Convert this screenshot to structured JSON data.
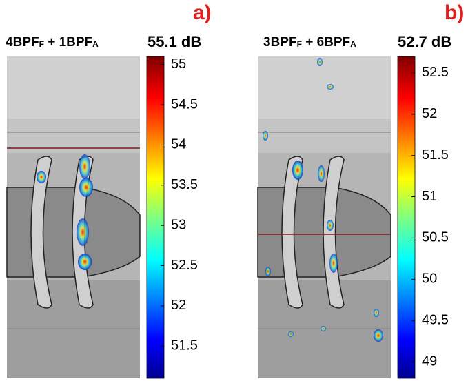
{
  "panels": [
    {
      "label": "a)",
      "title": {
        "part1": "4BPF",
        "sub1": "F",
        "part2": " + 1BPF",
        "sub2": "A"
      },
      "max_level": "55.1 dB",
      "colorbar": {
        "clim": [
          51.1,
          55.1
        ],
        "ticks": [
          51.5,
          52,
          52.5,
          53,
          53.5,
          54,
          54.5,
          55
        ]
      }
    },
    {
      "label": "b)",
      "title": {
        "part1": "3BPF",
        "sub1": "F",
        "part2": " + 6BPF",
        "sub2": "A"
      },
      "max_level": "52.7 dB",
      "colorbar": {
        "clim": [
          48.8,
          52.7
        ],
        "ticks": [
          49,
          49.5,
          50,
          50.5,
          51,
          51.5,
          52,
          52.5
        ]
      }
    }
  ]
}
